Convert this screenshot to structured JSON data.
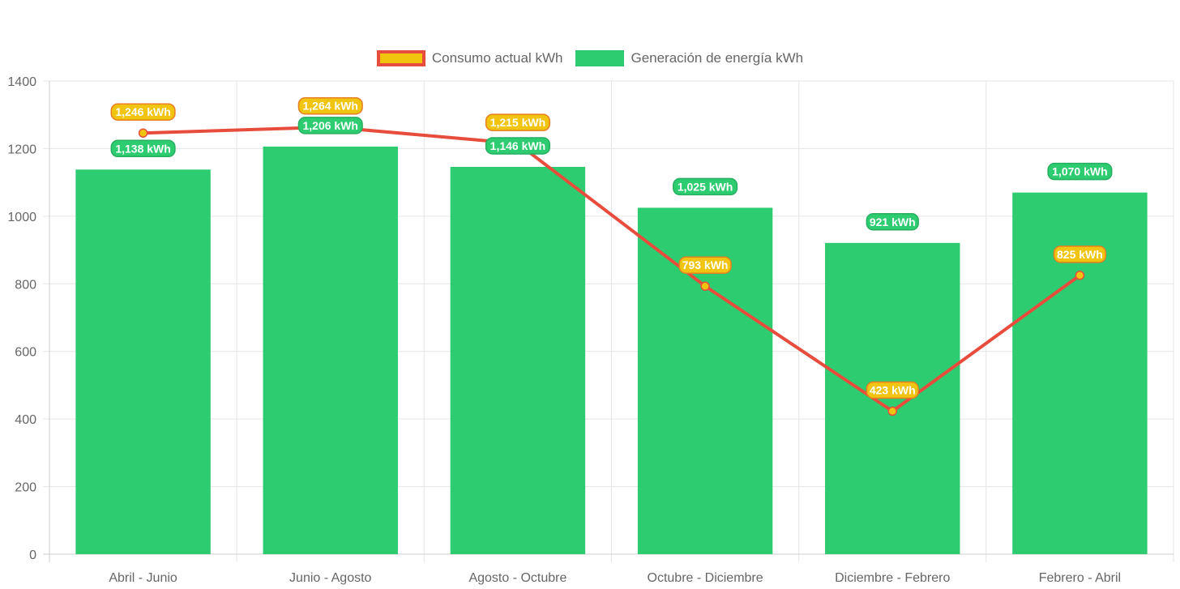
{
  "chart_data": {
    "type": "bar",
    "categories": [
      "Abril - Junio",
      "Junio - Agosto",
      "Agosto - Octubre",
      "Octubre - Diciembre",
      "Diciembre - Febrero",
      "Febrero - Abril"
    ],
    "series": [
      {
        "name": "Consumo actual kWh",
        "type": "line",
        "values": [
          1246,
          1264,
          1215,
          793,
          423,
          825
        ],
        "labels": [
          "1,246 kWh",
          "1,264 kWh",
          "1,215 kWh",
          "793 kWh",
          "423 kWh",
          "825 kWh"
        ],
        "line_color": "#e74c3c",
        "fill_color": "#f1c40f"
      },
      {
        "name": "Generación de energía kWh",
        "type": "bar",
        "values": [
          1138,
          1206,
          1146,
          1025,
          921,
          1070
        ],
        "labels": [
          "1,138 kWh",
          "1,206 kWh",
          "1,146 kWh",
          "1,025 kWh",
          "921 kWh",
          "1,070 kWh"
        ],
        "fill_color": "#2ecc71"
      }
    ],
    "ylim": [
      0,
      1400
    ],
    "yticks": [
      "0",
      "200",
      "400",
      "600",
      "800",
      "1000",
      "1200",
      "1400"
    ],
    "grid": true,
    "legend_position": "top-center"
  }
}
